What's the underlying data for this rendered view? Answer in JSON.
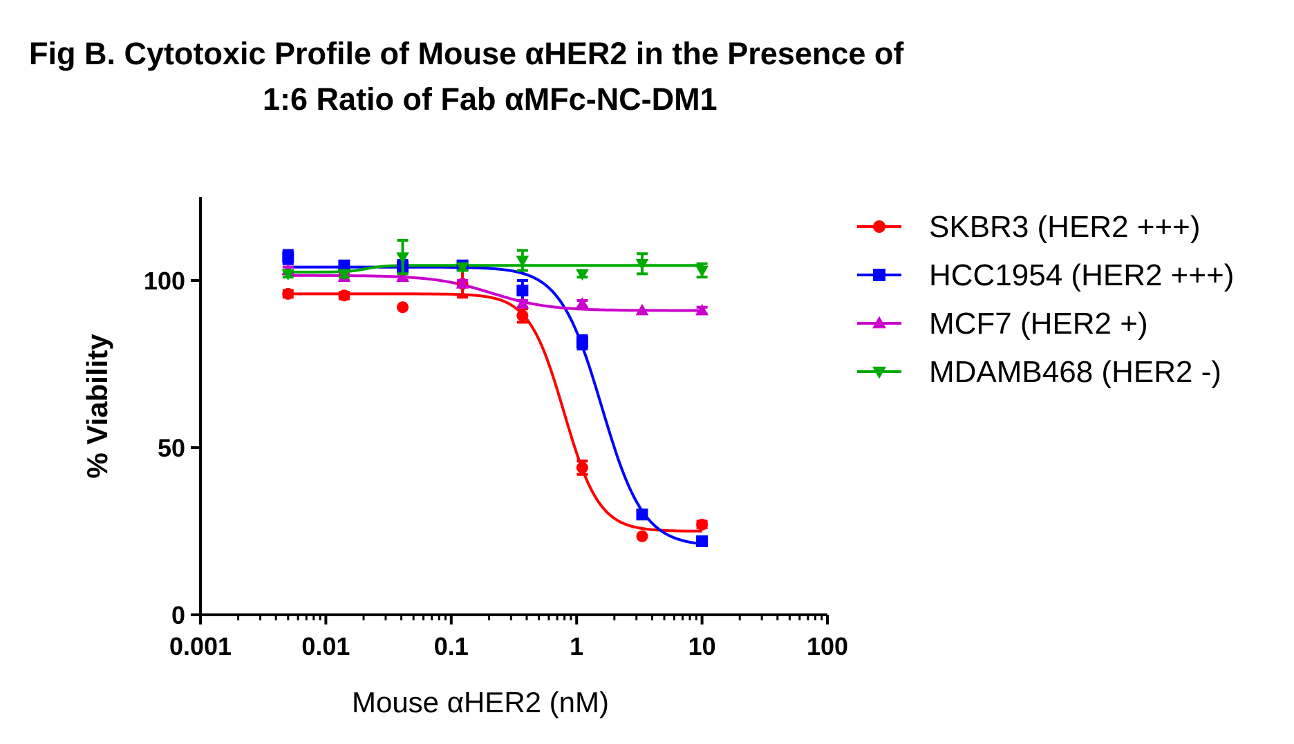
{
  "chart_data": {
    "type": "line",
    "title_line1": "Fig B. Cytotoxic Profile of Mouse αHER2 in the Presence of",
    "title_line2": "1:6 Ratio of Fab αMFc-NC-DM1",
    "xlabel": "Mouse αHER2 (nM)",
    "ylabel": "% Viability",
    "x_scale": "log",
    "xlim": [
      0.001,
      100
    ],
    "ylim": [
      0,
      125
    ],
    "x_ticks": [
      0.001,
      0.01,
      0.1,
      1,
      10,
      100
    ],
    "x_tick_labels": [
      "0.001",
      "0.01",
      "0.1",
      "1",
      "10",
      "100"
    ],
    "y_ticks": [
      0,
      50,
      100
    ],
    "y_tick_labels": [
      "0",
      "50",
      "100"
    ],
    "grid": false,
    "legend_position": "right",
    "x": [
      0.005,
      0.014,
      0.041,
      0.123,
      0.37,
      1.11,
      3.33,
      10
    ],
    "series": [
      {
        "name": "SKBR3 (HER2 +++)",
        "color": "#ff0000",
        "marker": "circle",
        "values": [
          96,
          95.5,
          92,
          99,
          89.5,
          44,
          23.5,
          27
        ],
        "errors": [
          1,
          1,
          0,
          4,
          2,
          2,
          0,
          1
        ]
      },
      {
        "name": "HCC1954 (HER2 +++)",
        "color": "#0000ff",
        "marker": "square",
        "values": [
          107,
          104.5,
          104,
          104.5,
          97,
          81.5,
          30,
          22
        ],
        "errors": [
          2,
          1,
          2,
          1,
          3,
          2,
          1,
          1
        ]
      },
      {
        "name": "MCF7 (HER2 +)",
        "color": "#cc00cc",
        "marker": "triangle-up",
        "values": [
          103,
          101,
          101,
          99,
          93,
          93,
          91,
          91
        ],
        "errors": [
          1,
          1,
          1,
          1,
          1,
          1,
          0,
          1
        ]
      },
      {
        "name": "MDAMB468 (HER2 -)",
        "color": "#00aa00",
        "marker": "triangle-down",
        "values": [
          102,
          102,
          107,
          104,
          106,
          102,
          105,
          103
        ],
        "errors": [
          1,
          1,
          5,
          1,
          3,
          1,
          3,
          2
        ]
      }
    ]
  }
}
